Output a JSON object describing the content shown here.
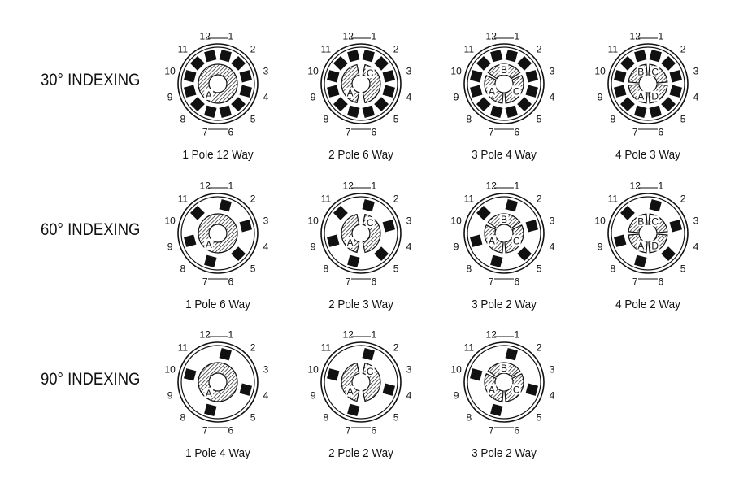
{
  "colors": {
    "ink": "#111111",
    "background": "#ffffff"
  },
  "terminal_labels": [
    "1",
    "2",
    "3",
    "4",
    "5",
    "6",
    "7",
    "8",
    "9",
    "10",
    "11",
    "12"
  ],
  "rows": [
    {
      "label": "30° INDEXING",
      "items": [
        {
          "caption": "1 Pole 12 Way",
          "poles": [
            "A"
          ]
        },
        {
          "caption": "2 Pole 6 Way",
          "poles": [
            "A",
            "C"
          ]
        },
        {
          "caption": "3 Pole 4 Way",
          "poles": [
            "A",
            "B",
            "C"
          ]
        },
        {
          "caption": "4 Pole 3 Way",
          "poles": [
            "A",
            "B",
            "C",
            "D"
          ]
        }
      ]
    },
    {
      "label": "60° INDEXING",
      "items": [
        {
          "caption": "1 Pole 6 Way",
          "poles": [
            "A"
          ]
        },
        {
          "caption": "2 Pole 3 Way",
          "poles": [
            "A",
            "C"
          ]
        },
        {
          "caption": "3 Pole 2 Way",
          "poles": [
            "A",
            "B",
            "C"
          ]
        },
        {
          "caption": "4 Pole 2 Way",
          "poles": [
            "A",
            "B",
            "C",
            "D"
          ]
        }
      ]
    },
    {
      "label": "90° INDEXING",
      "items": [
        {
          "caption": "1 Pole 4 Way",
          "poles": [
            "A"
          ]
        },
        {
          "caption": "2 Pole 2 Way",
          "poles": [
            "A",
            "C"
          ]
        },
        {
          "caption": "3 Pole 2 Way",
          "poles": [
            "A",
            "B",
            "C"
          ]
        }
      ]
    }
  ]
}
